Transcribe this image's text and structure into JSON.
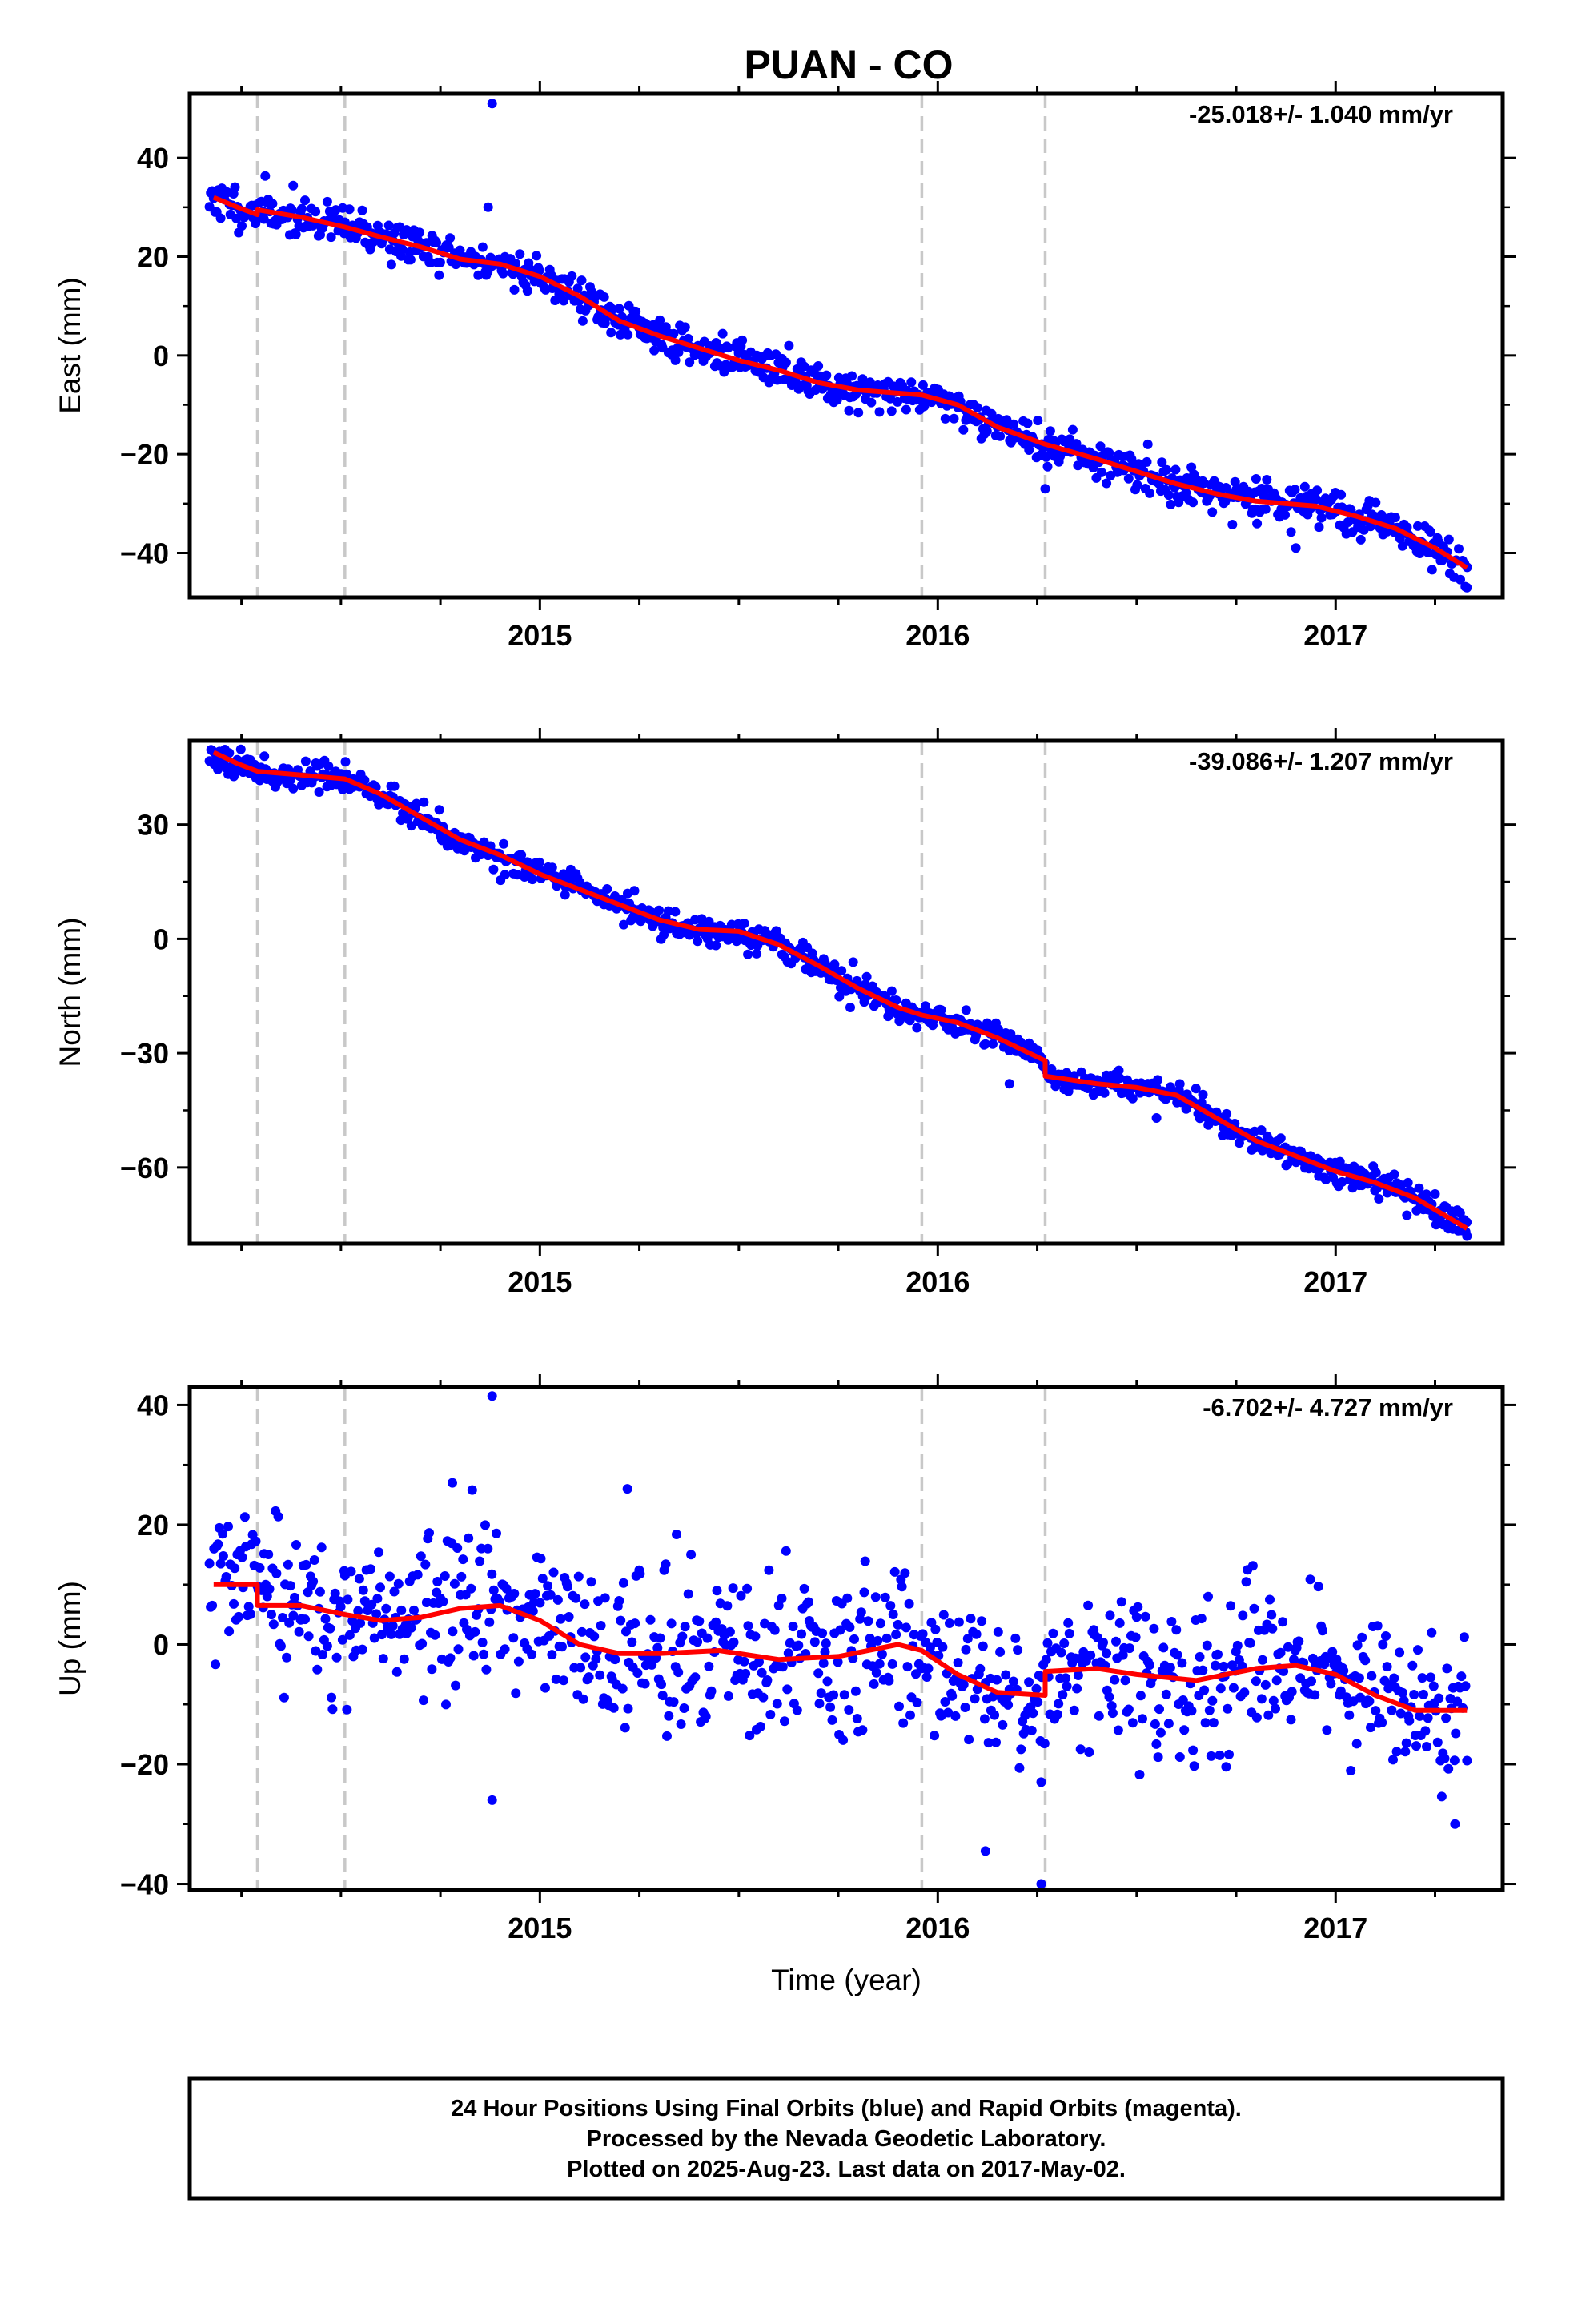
{
  "title": "PUAN - CO",
  "colors": {
    "points": "#0000ff",
    "model": "#ff0000",
    "steps": "#c8c8c8",
    "frame": "#000000"
  },
  "chart_data": [
    {
      "type": "scatter",
      "component": "East",
      "ylabel": "East (mm)",
      "xlabel": "",
      "rate": "-25.018+/- 1.040 mm/yr",
      "xlim": [
        2014.12,
        2017.42
      ],
      "ylim": [
        -49,
        53
      ],
      "yticks": [
        40,
        20,
        0,
        -20,
        -40
      ],
      "ytick_labels": [
        "40",
        "20",
        "0",
        "−20",
        "−40"
      ],
      "xticks": [
        2015,
        2016,
        2017
      ],
      "xtick_labels": [
        "2015",
        "2016",
        "2017"
      ],
      "steps": [
        2014.29,
        2014.51,
        2015.96,
        2016.27
      ],
      "model": [
        [
          2014.18,
          32
        ],
        [
          2014.24,
          30
        ],
        [
          2014.29,
          28.5
        ],
        [
          2014.29,
          29.5
        ],
        [
          2014.4,
          28
        ],
        [
          2014.51,
          26
        ],
        [
          2014.6,
          24
        ],
        [
          2014.7,
          22
        ],
        [
          2014.8,
          19.5
        ],
        [
          2014.9,
          18.5
        ],
        [
          2015.0,
          16
        ],
        [
          2015.1,
          12
        ],
        [
          2015.2,
          7
        ],
        [
          2015.3,
          4
        ],
        [
          2015.4,
          1.5
        ],
        [
          2015.5,
          -1
        ],
        [
          2015.6,
          -3
        ],
        [
          2015.7,
          -5.5
        ],
        [
          2015.8,
          -7
        ],
        [
          2015.96,
          -8
        ],
        [
          2016.05,
          -10
        ],
        [
          2016.15,
          -14.5
        ],
        [
          2016.27,
          -18
        ],
        [
          2016.4,
          -21
        ],
        [
          2016.5,
          -23.5
        ],
        [
          2016.6,
          -26
        ],
        [
          2016.7,
          -28
        ],
        [
          2016.8,
          -29.5
        ],
        [
          2016.95,
          -30.5
        ],
        [
          2017.05,
          -32.5
        ],
        [
          2017.15,
          -35
        ],
        [
          2017.25,
          -39
        ],
        [
          2017.33,
          -43
        ]
      ],
      "noise": 2.0,
      "outliers": [
        [
          2014.88,
          51
        ],
        [
          2014.87,
          30
        ],
        [
          2016.27,
          -27
        ],
        [
          2016.9,
          -39
        ],
        [
          2017.33,
          -47
        ],
        [
          2016.8,
          -25
        ]
      ],
      "count": 900,
      "seed": 11
    },
    {
      "type": "scatter",
      "component": "North",
      "ylabel": "North (mm)",
      "xlabel": "",
      "rate": "-39.086+/- 1.207 mm/yr",
      "xlim": [
        2014.12,
        2017.42
      ],
      "ylim": [
        -80,
        52
      ],
      "yticks": [
        30,
        0,
        -30,
        -60
      ],
      "ytick_labels": [
        "30",
        "0",
        "−30",
        "−60"
      ],
      "xticks": [
        2015,
        2016,
        2017
      ],
      "xtick_labels": [
        "2015",
        "2016",
        "2017"
      ],
      "steps": [
        2014.29,
        2014.51,
        2015.96,
        2016.27
      ],
      "model": [
        [
          2014.18,
          49
        ],
        [
          2014.24,
          46
        ],
        [
          2014.29,
          44
        ],
        [
          2014.4,
          43
        ],
        [
          2014.51,
          42
        ],
        [
          2014.6,
          38
        ],
        [
          2014.7,
          32
        ],
        [
          2014.8,
          26
        ],
        [
          2014.9,
          22
        ],
        [
          2015.0,
          17
        ],
        [
          2015.1,
          13
        ],
        [
          2015.2,
          9
        ],
        [
          2015.3,
          5
        ],
        [
          2015.4,
          2.5
        ],
        [
          2015.5,
          2
        ],
        [
          2015.6,
          -1.5
        ],
        [
          2015.7,
          -7
        ],
        [
          2015.8,
          -13
        ],
        [
          2015.9,
          -18
        ],
        [
          2015.96,
          -20
        ],
        [
          2016.05,
          -22
        ],
        [
          2016.15,
          -26
        ],
        [
          2016.27,
          -32
        ],
        [
          2016.27,
          -36
        ],
        [
          2016.4,
          -38
        ],
        [
          2016.5,
          -39
        ],
        [
          2016.6,
          -41
        ],
        [
          2016.7,
          -47
        ],
        [
          2016.8,
          -53
        ],
        [
          2016.9,
          -57
        ],
        [
          2017.0,
          -61
        ],
        [
          2017.1,
          -64
        ],
        [
          2017.2,
          -68
        ],
        [
          2017.33,
          -76
        ]
      ],
      "noise": 1.8,
      "outliers": [
        [
          2017.33,
          -78
        ],
        [
          2015.78,
          -18
        ],
        [
          2016.18,
          -38
        ],
        [
          2016.55,
          -47
        ]
      ],
      "count": 900,
      "seed": 23
    },
    {
      "type": "scatter",
      "component": "Up",
      "ylabel": "Up (mm)",
      "xlabel": "Time (year)",
      "rate": "-6.702+/- 4.727 mm/yr",
      "xlim": [
        2014.12,
        2017.42
      ],
      "ylim": [
        -41,
        43
      ],
      "yticks": [
        40,
        20,
        0,
        -20,
        -40
      ],
      "ytick_labels": [
        "40",
        "20",
        "0",
        "−20",
        "−40"
      ],
      "xticks": [
        2015,
        2016,
        2017
      ],
      "xtick_labels": [
        "2015",
        "2016",
        "2017"
      ],
      "steps": [
        2014.29,
        2014.51,
        2015.96,
        2016.27
      ],
      "model": [
        [
          2014.18,
          10
        ],
        [
          2014.29,
          10
        ],
        [
          2014.29,
          6.5
        ],
        [
          2014.4,
          6.5
        ],
        [
          2014.51,
          5
        ],
        [
          2014.6,
          4
        ],
        [
          2014.7,
          4.5
        ],
        [
          2014.8,
          6
        ],
        [
          2014.9,
          6.5
        ],
        [
          2015.0,
          4
        ],
        [
          2015.1,
          0
        ],
        [
          2015.2,
          -1.5
        ],
        [
          2015.3,
          -1.5
        ],
        [
          2015.45,
          -1
        ],
        [
          2015.6,
          -2.5
        ],
        [
          2015.75,
          -2
        ],
        [
          2015.9,
          0
        ],
        [
          2015.96,
          -1
        ],
        [
          2016.05,
          -5
        ],
        [
          2016.15,
          -8
        ],
        [
          2016.27,
          -8.5
        ],
        [
          2016.27,
          -4.5
        ],
        [
          2016.4,
          -4
        ],
        [
          2016.5,
          -5
        ],
        [
          2016.65,
          -6
        ],
        [
          2016.8,
          -4
        ],
        [
          2016.9,
          -3.5
        ],
        [
          2017.0,
          -5
        ],
        [
          2017.1,
          -8.5
        ],
        [
          2017.2,
          -11
        ],
        [
          2017.33,
          -11
        ]
      ],
      "noise": 6.5,
      "outliers": [
        [
          2014.88,
          41.5
        ],
        [
          2016.26,
          -40
        ],
        [
          2016.12,
          -34.5
        ],
        [
          2014.88,
          -26
        ],
        [
          2015.22,
          26
        ],
        [
          2014.78,
          27
        ],
        [
          2017.3,
          -30
        ],
        [
          2016.26,
          -23
        ]
      ],
      "count": 900,
      "seed": 37
    }
  ],
  "caption": {
    "lines": [
      "24 Hour Positions Using Final Orbits (blue) and Rapid Orbits (magenta).",
      "Processed by the Nevada Geodetic Laboratory.",
      "Plotted on 2025-Aug-23. Last data on 2017-May-02."
    ]
  }
}
